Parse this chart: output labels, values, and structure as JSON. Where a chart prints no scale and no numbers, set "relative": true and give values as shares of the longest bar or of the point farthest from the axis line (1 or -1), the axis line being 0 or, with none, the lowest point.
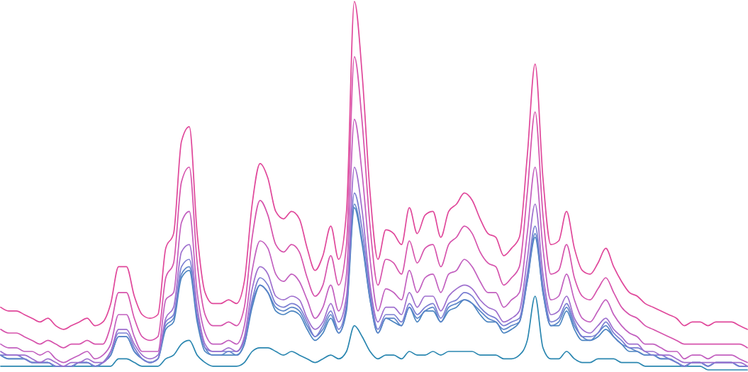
{
  "chart_data": {
    "type": "line",
    "relative": true,
    "categories": [
      null,
      null,
      null,
      null,
      null,
      null,
      null,
      null,
      null,
      null,
      null,
      null,
      null,
      null,
      null,
      null,
      null,
      null,
      null,
      null,
      null,
      null,
      null,
      null,
      null,
      null,
      null,
      null,
      null,
      null,
      null,
      null,
      null,
      null,
      null,
      null,
      null,
      null,
      null,
      null,
      null,
      null,
      null,
      null,
      null,
      null,
      null,
      null,
      null,
      null,
      null,
      null,
      null,
      null,
      null,
      null,
      null,
      null,
      null,
      null,
      null,
      null,
      null,
      null,
      null,
      null,
      null,
      null,
      null,
      null,
      null,
      null,
      null,
      null,
      null,
      null,
      null,
      null,
      null,
      null,
      null,
      null,
      null,
      null,
      null,
      null,
      null,
      null,
      null,
      null,
      null,
      null,
      null,
      null,
      null,
      null
    ],
    "series": [
      {
        "color": "#2a86b0",
        "values": [
          0.01,
          0.01,
          0.01,
          0.01,
          0.01,
          0.01,
          0.01,
          0.01,
          0.01,
          0.01,
          0.01,
          0.01,
          0.01,
          0.01,
          0.01,
          0.03,
          0.03,
          0.02,
          0.01,
          0.01,
          0.01,
          0.03,
          0.04,
          0.07,
          0.08,
          0.04,
          0.02,
          0.01,
          0.01,
          0.01,
          0.01,
          0.02,
          0.05,
          0.06,
          0.06,
          0.05,
          0.04,
          0.05,
          0.04,
          0.03,
          0.02,
          0.03,
          0.04,
          0.03,
          0.05,
          0.12,
          0.09,
          0.05,
          0.03,
          0.04,
          0.04,
          0.03,
          0.05,
          0.04,
          0.04,
          0.05,
          0.04,
          0.05,
          0.05,
          0.05,
          0.05,
          0.04,
          0.04,
          0.04,
          0.03,
          0.03,
          0.04,
          0.08,
          0.2,
          0.06,
          0.03,
          0.03,
          0.05,
          0.03,
          0.02,
          0.02,
          0.03,
          0.03,
          0.03,
          0.02,
          0.02,
          0.02,
          0.01,
          0.01,
          0.01,
          0.01,
          0.01,
          0.01,
          0.01,
          0.01,
          0,
          0,
          0,
          0,
          0,
          0
        ]
      },
      {
        "color": "#4a84c0",
        "values": [
          0.04,
          0.03,
          0.03,
          0.03,
          0.02,
          0.02,
          0.02,
          0.01,
          0.01,
          0.01,
          0.02,
          0.02,
          0.01,
          0.02,
          0.04,
          0.09,
          0.09,
          0.05,
          0.03,
          0.02,
          0.03,
          0.11,
          0.13,
          0.25,
          0.27,
          0.13,
          0.05,
          0.04,
          0.04,
          0.04,
          0.04,
          0.07,
          0.17,
          0.23,
          0.21,
          0.16,
          0.15,
          0.16,
          0.15,
          0.11,
          0.08,
          0.1,
          0.14,
          0.1,
          0.16,
          0.44,
          0.34,
          0.19,
          0.1,
          0.14,
          0.13,
          0.12,
          0.17,
          0.13,
          0.16,
          0.16,
          0.13,
          0.16,
          0.17,
          0.19,
          0.18,
          0.15,
          0.13,
          0.13,
          0.1,
          0.11,
          0.13,
          0.24,
          0.36,
          0.21,
          0.12,
          0.12,
          0.16,
          0.11,
          0.08,
          0.08,
          0.09,
          0.11,
          0.09,
          0.07,
          0.05,
          0.05,
          0.04,
          0.04,
          0.03,
          0.03,
          0.02,
          0.01,
          0.02,
          0.02,
          0.01,
          0.02,
          0.02,
          0.02,
          0.01,
          0.01
        ]
      },
      {
        "color": "#5b85c8",
        "values": [
          0.04,
          0.03,
          0.03,
          0.03,
          0.02,
          0.02,
          0.02,
          0.01,
          0.01,
          0.01,
          0.02,
          0.02,
          0.01,
          0.02,
          0.04,
          0.09,
          0.09,
          0.05,
          0.03,
          0.02,
          0.03,
          0.12,
          0.14,
          0.26,
          0.28,
          0.14,
          0.06,
          0.04,
          0.04,
          0.05,
          0.04,
          0.07,
          0.18,
          0.23,
          0.21,
          0.17,
          0.16,
          0.17,
          0.16,
          0.12,
          0.09,
          0.11,
          0.15,
          0.1,
          0.17,
          0.45,
          0.35,
          0.19,
          0.1,
          0.14,
          0.14,
          0.12,
          0.17,
          0.14,
          0.16,
          0.17,
          0.13,
          0.17,
          0.18,
          0.19,
          0.18,
          0.16,
          0.14,
          0.13,
          0.11,
          0.12,
          0.13,
          0.24,
          0.37,
          0.21,
          0.12,
          0.13,
          0.17,
          0.12,
          0.09,
          0.08,
          0.1,
          0.12,
          0.09,
          0.07,
          0.06,
          0.05,
          0.04,
          0.04,
          0.03,
          0.03,
          0.02,
          0.01,
          0.02,
          0.02,
          0.01,
          0.02,
          0.02,
          0.02,
          0.01,
          0.01
        ]
      },
      {
        "color": "#7a7ed2",
        "values": [
          0.04,
          0.04,
          0.04,
          0.03,
          0.02,
          0.02,
          0.02,
          0.01,
          0.01,
          0.01,
          0.02,
          0.02,
          0.01,
          0.02,
          0.05,
          0.1,
          0.1,
          0.06,
          0.03,
          0.02,
          0.03,
          0.13,
          0.15,
          0.28,
          0.3,
          0.15,
          0.06,
          0.05,
          0.05,
          0.05,
          0.05,
          0.08,
          0.19,
          0.25,
          0.23,
          0.18,
          0.17,
          0.18,
          0.17,
          0.13,
          0.09,
          0.12,
          0.16,
          0.11,
          0.18,
          0.48,
          0.38,
          0.21,
          0.11,
          0.15,
          0.15,
          0.13,
          0.18,
          0.15,
          0.17,
          0.18,
          0.14,
          0.18,
          0.19,
          0.21,
          0.2,
          0.17,
          0.15,
          0.14,
          0.12,
          0.13,
          0.14,
          0.26,
          0.39,
          0.23,
          0.13,
          0.14,
          0.18,
          0.13,
          0.09,
          0.09,
          0.1,
          0.13,
          0.1,
          0.08,
          0.06,
          0.06,
          0.05,
          0.04,
          0.04,
          0.03,
          0.02,
          0.01,
          0.02,
          0.02,
          0.01,
          0.02,
          0.02,
          0.02,
          0.01,
          0.01
        ]
      },
      {
        "color": "#9e6fce",
        "values": [
          0.05,
          0.04,
          0.04,
          0.04,
          0.03,
          0.02,
          0.03,
          0.02,
          0.01,
          0.02,
          0.02,
          0.03,
          0.02,
          0.02,
          0.05,
          0.11,
          0.11,
          0.07,
          0.04,
          0.03,
          0.04,
          0.14,
          0.17,
          0.32,
          0.34,
          0.17,
          0.07,
          0.05,
          0.05,
          0.06,
          0.05,
          0.09,
          0.22,
          0.28,
          0.26,
          0.2,
          0.19,
          0.2,
          0.19,
          0.14,
          0.11,
          0.13,
          0.18,
          0.13,
          0.2,
          0.55,
          0.43,
          0.23,
          0.13,
          0.17,
          0.17,
          0.15,
          0.21,
          0.17,
          0.2,
          0.2,
          0.16,
          0.2,
          0.22,
          0.23,
          0.22,
          0.19,
          0.17,
          0.16,
          0.13,
          0.14,
          0.16,
          0.3,
          0.45,
          0.26,
          0.15,
          0.16,
          0.2,
          0.14,
          0.11,
          0.1,
          0.12,
          0.14,
          0.11,
          0.09,
          0.07,
          0.07,
          0.05,
          0.05,
          0.04,
          0.04,
          0.03,
          0.02,
          0.02,
          0.02,
          0.02,
          0.02,
          0.02,
          0.02,
          0.02,
          0.01
        ]
      },
      {
        "color": "#c25fbf",
        "values": [
          0.07,
          0.06,
          0.06,
          0.05,
          0.05,
          0.04,
          0.05,
          0.03,
          0.02,
          0.03,
          0.04,
          0.05,
          0.03,
          0.04,
          0.07,
          0.15,
          0.15,
          0.09,
          0.05,
          0.05,
          0.05,
          0.19,
          0.21,
          0.4,
          0.43,
          0.21,
          0.1,
          0.07,
          0.07,
          0.08,
          0.07,
          0.12,
          0.27,
          0.35,
          0.33,
          0.26,
          0.24,
          0.26,
          0.24,
          0.19,
          0.14,
          0.17,
          0.23,
          0.16,
          0.26,
          0.68,
          0.53,
          0.3,
          0.16,
          0.22,
          0.21,
          0.19,
          0.27,
          0.21,
          0.25,
          0.26,
          0.21,
          0.26,
          0.27,
          0.3,
          0.28,
          0.24,
          0.21,
          0.21,
          0.17,
          0.19,
          0.21,
          0.37,
          0.55,
          0.33,
          0.19,
          0.2,
          0.26,
          0.19,
          0.14,
          0.13,
          0.16,
          0.19,
          0.15,
          0.12,
          0.1,
          0.09,
          0.07,
          0.07,
          0.06,
          0.05,
          0.05,
          0.03,
          0.04,
          0.04,
          0.03,
          0.04,
          0.04,
          0.04,
          0.03,
          0.02
        ]
      },
      {
        "color": "#d653ac",
        "values": [
          0.11,
          0.1,
          0.1,
          0.09,
          0.08,
          0.07,
          0.08,
          0.07,
          0.06,
          0.07,
          0.07,
          0.08,
          0.07,
          0.07,
          0.12,
          0.21,
          0.21,
          0.14,
          0.09,
          0.08,
          0.09,
          0.25,
          0.29,
          0.51,
          0.55,
          0.29,
          0.15,
          0.12,
          0.12,
          0.13,
          0.12,
          0.17,
          0.36,
          0.46,
          0.42,
          0.34,
          0.32,
          0.34,
          0.32,
          0.25,
          0.2,
          0.23,
          0.31,
          0.23,
          0.34,
          0.85,
          0.67,
          0.39,
          0.23,
          0.3,
          0.29,
          0.26,
          0.35,
          0.29,
          0.33,
          0.34,
          0.28,
          0.34,
          0.36,
          0.39,
          0.37,
          0.32,
          0.29,
          0.28,
          0.23,
          0.25,
          0.28,
          0.48,
          0.7,
          0.42,
          0.26,
          0.27,
          0.34,
          0.25,
          0.2,
          0.19,
          0.22,
          0.25,
          0.21,
          0.17,
          0.15,
          0.14,
          0.12,
          0.11,
          0.1,
          0.09,
          0.08,
          0.07,
          0.07,
          0.07,
          0.07,
          0.07,
          0.07,
          0.07,
          0.07,
          0.06
        ]
      },
      {
        "color": "#e0479a",
        "values": [
          0.17,
          0.16,
          0.16,
          0.15,
          0.14,
          0.13,
          0.14,
          0.12,
          0.11,
          0.12,
          0.13,
          0.14,
          0.12,
          0.13,
          0.18,
          0.28,
          0.28,
          0.2,
          0.15,
          0.14,
          0.15,
          0.33,
          0.37,
          0.62,
          0.66,
          0.37,
          0.21,
          0.18,
          0.18,
          0.19,
          0.18,
          0.24,
          0.45,
          0.56,
          0.52,
          0.43,
          0.41,
          0.43,
          0.41,
          0.33,
          0.27,
          0.31,
          0.39,
          0.3,
          0.43,
          1,
          0.8,
          0.48,
          0.3,
          0.38,
          0.37,
          0.34,
          0.44,
          0.37,
          0.42,
          0.43,
          0.36,
          0.43,
          0.45,
          0.48,
          0.46,
          0.41,
          0.37,
          0.36,
          0.31,
          0.33,
          0.36,
          0.58,
          0.83,
          0.52,
          0.34,
          0.35,
          0.43,
          0.33,
          0.27,
          0.26,
          0.29,
          0.33,
          0.28,
          0.24,
          0.21,
          0.2,
          0.18,
          0.17,
          0.16,
          0.15,
          0.14,
          0.12,
          0.13,
          0.13,
          0.12,
          0.13,
          0.13,
          0.13,
          0.12,
          0.11
        ]
      }
    ]
  }
}
